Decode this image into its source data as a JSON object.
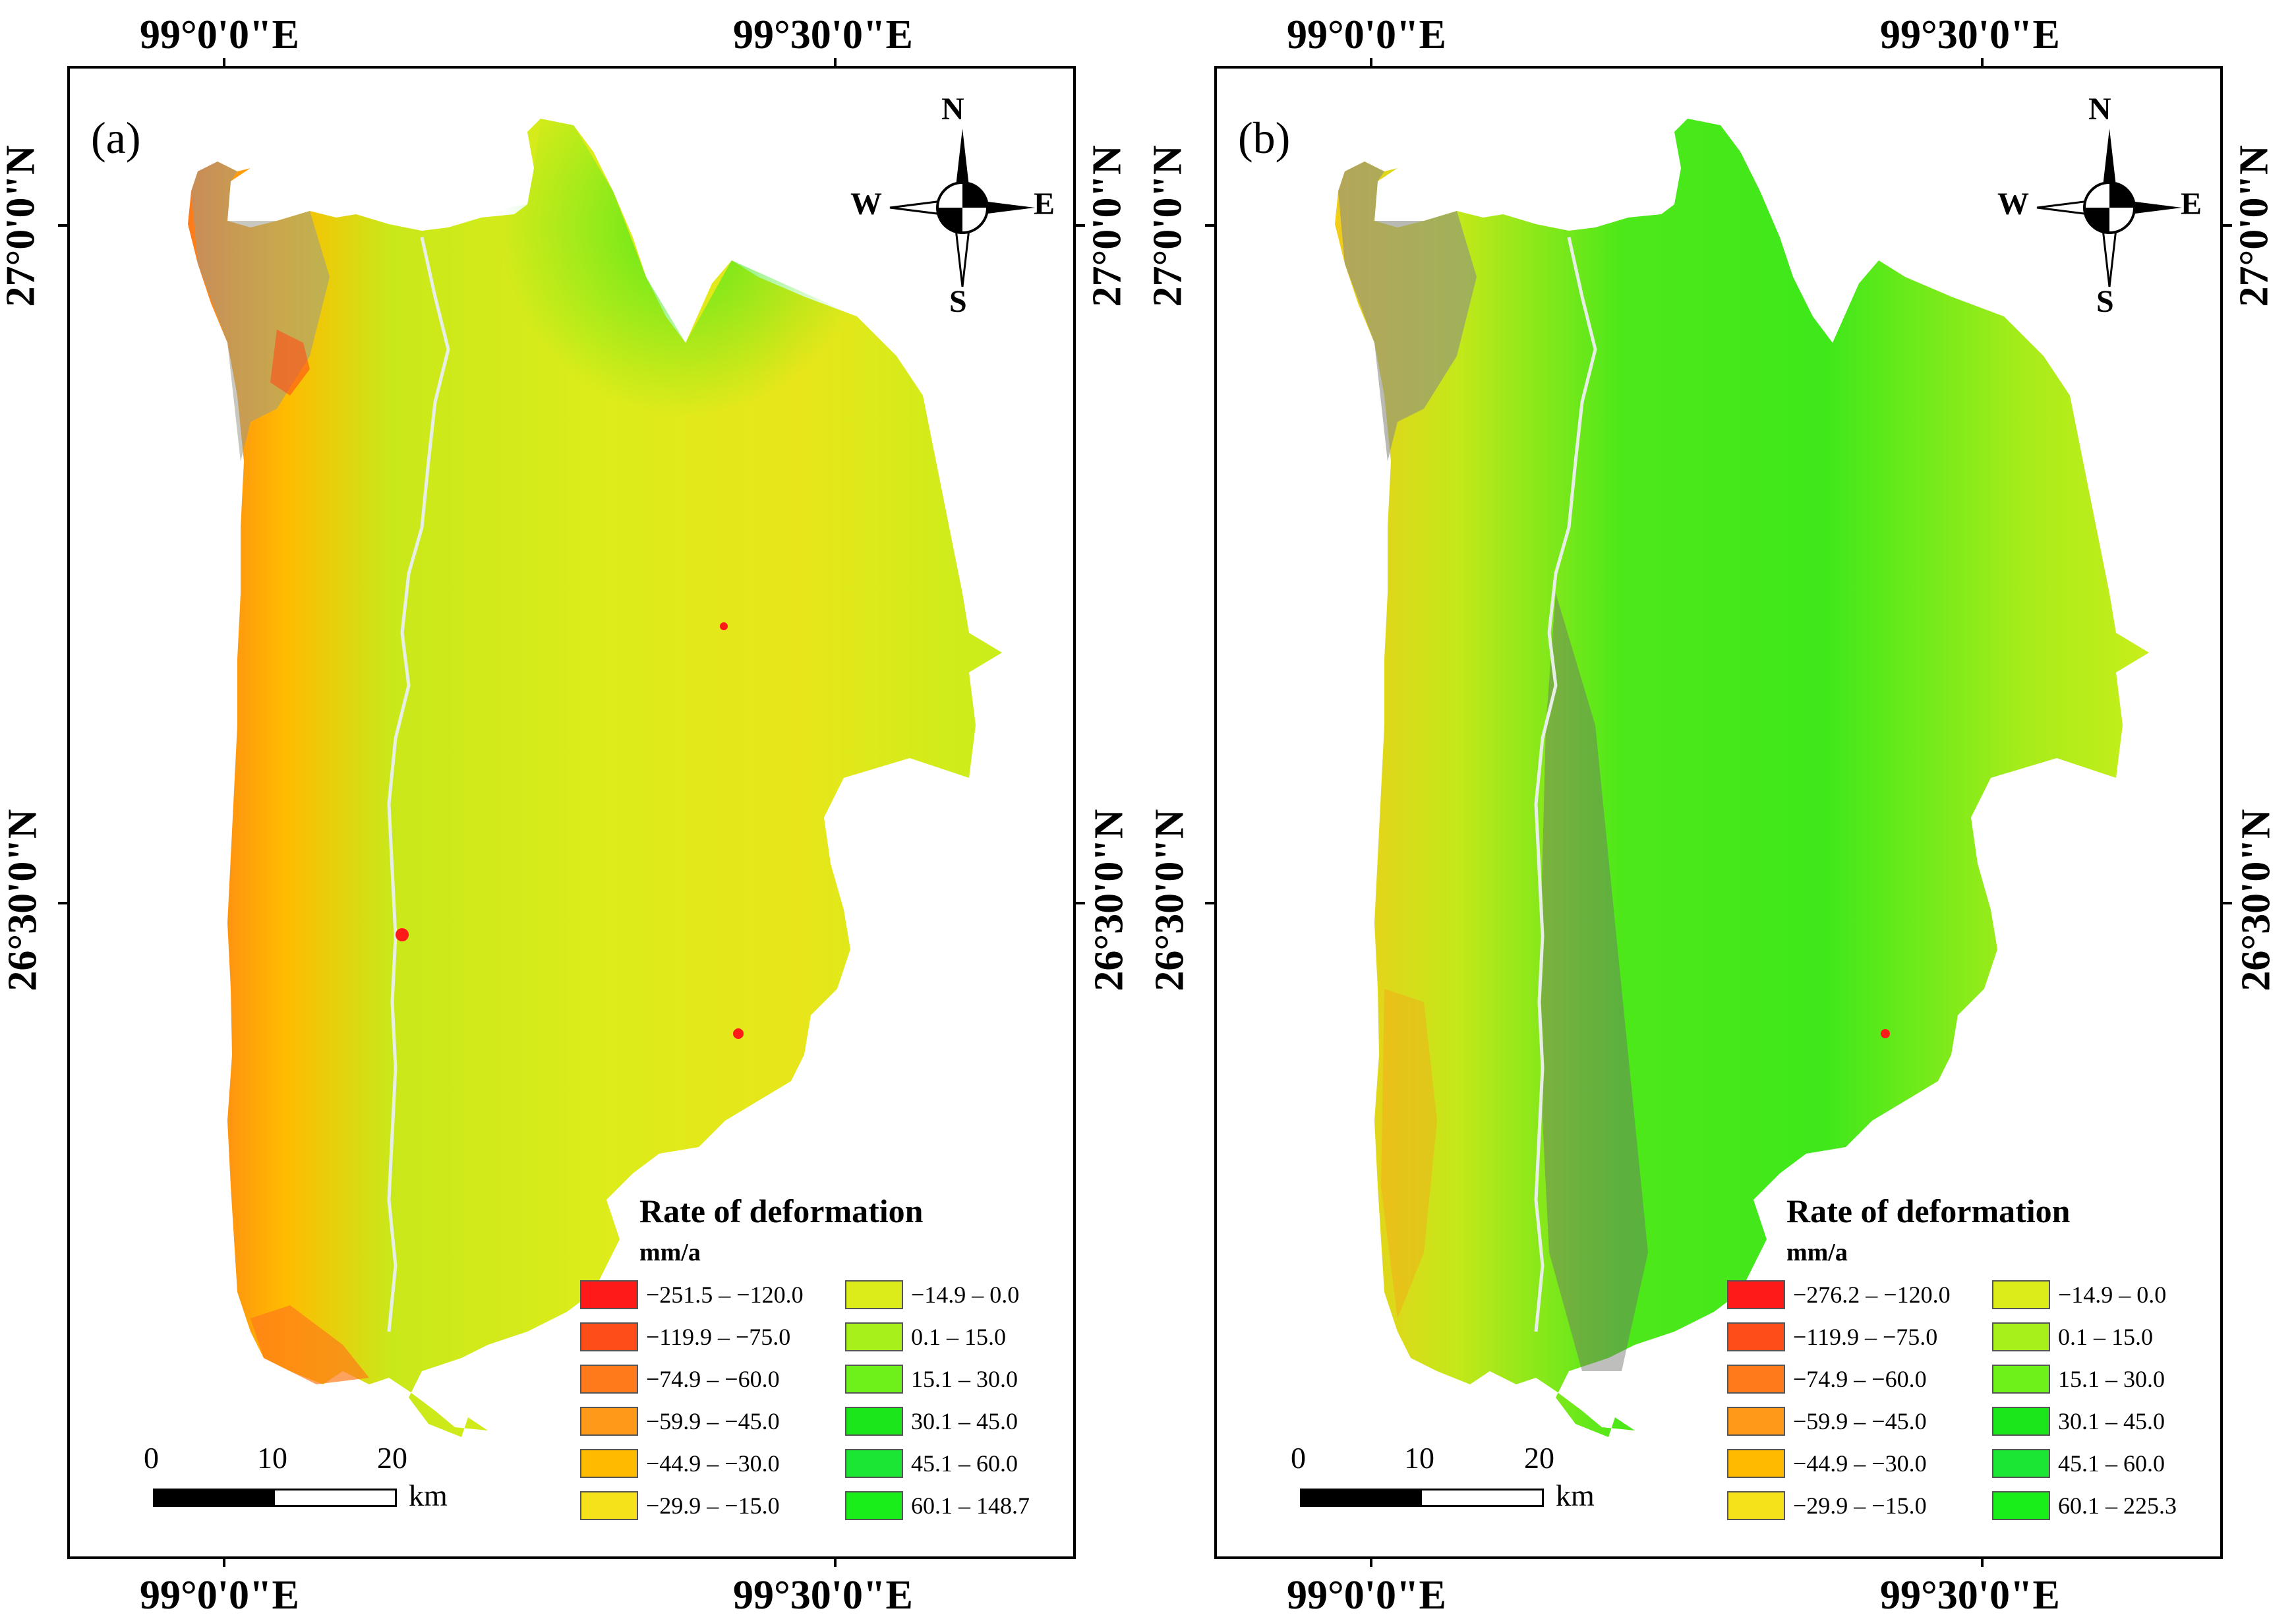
{
  "colors": {
    "c1": "#ff1a1a",
    "c2": "#ff4d1a",
    "c3": "#ff7a1a",
    "c4": "#ff991a",
    "c5": "#ffbb00",
    "c6": "#f5e21a",
    "c7": "#dcec1a",
    "c8": "#a8f01a",
    "c9": "#6ef01a",
    "c10": "#1ae61a",
    "c11": "#1ae633",
    "c12": "#1aee1a"
  },
  "axes": {
    "lon_left": "99°0'0\"E",
    "lon_right": "99°30'0\"E",
    "lat_top": "27°0'0\"N",
    "lat_bottom": "26°30'0\"N"
  },
  "compass": {
    "n": "N",
    "s": "S",
    "e": "E",
    "w": "W"
  },
  "scalebar": {
    "n0": "0",
    "n10": "10",
    "n20": "20",
    "unit": "km"
  },
  "panels": [
    {
      "label": "(a)",
      "legend": {
        "title": "Rate of deformation",
        "unit": "mm/a",
        "left": [
          "−251.5 – −120.0",
          "−119.9 – −75.0",
          "−74.9 – −60.0",
          "−59.9 – −45.0",
          "−44.9 – −30.0",
          "−29.9 – −15.0"
        ],
        "right": [
          "−14.9 – 0.0",
          "0.1 – 15.0",
          "15.1 – 30.0",
          "30.1 – 45.0",
          "45.1 – 60.0",
          "60.1 – 148.7"
        ]
      }
    },
    {
      "label": "(b)",
      "legend": {
        "title": "Rate of deformation",
        "unit": "mm/a",
        "left": [
          "−276.2 – −120.0",
          "−119.9 – −75.0",
          "−74.9 – −60.0",
          "−59.9 – −45.0",
          "−44.9 – −30.0",
          "−29.9 – −15.0"
        ],
        "right": [
          "−14.9 – 0.0",
          "0.1 – 15.0",
          "15.1 – 30.0",
          "30.1 – 45.0",
          "45.1 – 60.0",
          "60.1 – 225.3"
        ]
      }
    }
  ]
}
